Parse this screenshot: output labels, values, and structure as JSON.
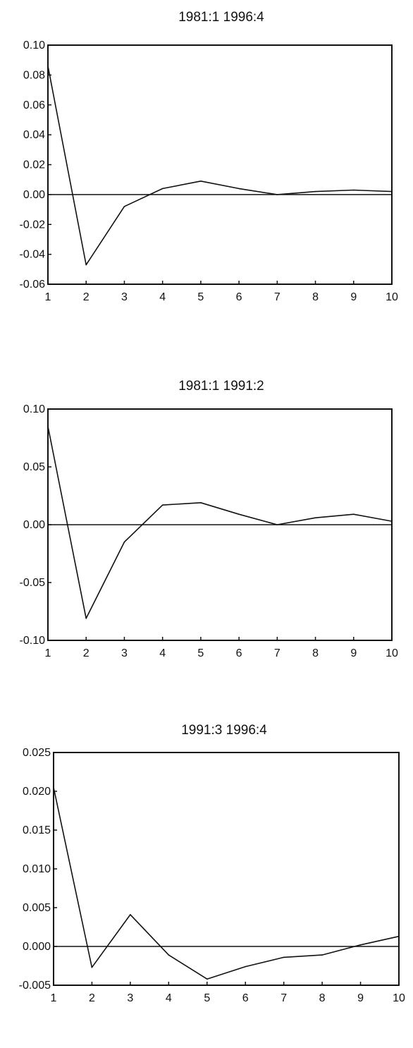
{
  "chart_data": [
    {
      "type": "line",
      "title": "1981:1 1996:4",
      "x": [
        1,
        2,
        3,
        4,
        5,
        6,
        7,
        8,
        9,
        10
      ],
      "series": [
        {
          "values": [
            0.086,
            -0.047,
            -0.008,
            0.004,
            0.009,
            0.004,
            0.0,
            0.002,
            0.003,
            0.002
          ]
        }
      ],
      "ylim": [
        -0.06,
        0.1
      ],
      "yticks": [
        "0.10",
        "0.08",
        "0.06",
        "0.04",
        "0.02",
        "0.00",
        "-0.02",
        "-0.04",
        "-0.06"
      ],
      "ytick_values": [
        0.1,
        0.08,
        0.06,
        0.04,
        0.02,
        0.0,
        -0.02,
        -0.04,
        -0.06
      ],
      "xticks": [
        "1",
        "2",
        "3",
        "4",
        "5",
        "6",
        "7",
        "8",
        "9",
        "10"
      ],
      "zero_line": true
    },
    {
      "type": "line",
      "title": "1981:1 1991:2",
      "x": [
        1,
        2,
        3,
        4,
        5,
        6,
        7,
        8,
        9,
        10
      ],
      "series": [
        {
          "values": [
            0.085,
            -0.081,
            -0.015,
            0.017,
            0.019,
            0.009,
            0.0,
            0.006,
            0.009,
            0.003
          ]
        }
      ],
      "ylim": [
        -0.1,
        0.1
      ],
      "yticks": [
        "0.10",
        "0.05",
        "0.00",
        "-0.05",
        "-0.10"
      ],
      "ytick_values": [
        0.1,
        0.05,
        0.0,
        -0.05,
        -0.1
      ],
      "xticks": [
        "1",
        "2",
        "3",
        "4",
        "5",
        "6",
        "7",
        "8",
        "9",
        "10"
      ],
      "zero_line": true
    },
    {
      "type": "line",
      "title": "1991:3 1996:4",
      "x": [
        1,
        2,
        3,
        4,
        5,
        6,
        7,
        8,
        9,
        10
      ],
      "series": [
        {
          "values": [
            0.0205,
            -0.0027,
            0.0041,
            -0.0011,
            -0.0042,
            -0.0026,
            -0.0014,
            -0.0011,
            0.0002,
            0.0013
          ]
        }
      ],
      "ylim": [
        -0.005,
        0.025
      ],
      "yticks": [
        "0.025",
        "0.020",
        "0.015",
        "0.010",
        "0.005",
        "0.000",
        "-0.005"
      ],
      "ytick_values": [
        0.025,
        0.02,
        0.015,
        0.01,
        0.005,
        0.0,
        -0.005
      ],
      "xticks": [
        "1",
        "2",
        "3",
        "4",
        "5",
        "6",
        "7",
        "8",
        "9",
        "10"
      ],
      "zero_line": true
    }
  ]
}
